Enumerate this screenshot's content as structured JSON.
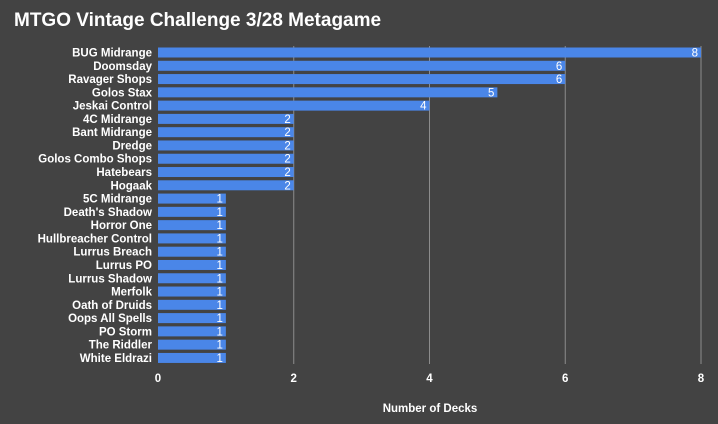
{
  "chart_data": {
    "type": "bar",
    "orientation": "horizontal",
    "title": "MTGO Vintage Challenge 3/28 Metagame",
    "xlabel": "Number of Decks",
    "ylabel": "",
    "categories": [
      "BUG Midrange",
      "Doomsday",
      "Ravager Shops",
      "Golos Stax",
      "Jeskai Control",
      "4C Midrange",
      "Bant Midrange",
      "Dredge",
      "Golos Combo Shops",
      "Hatebears",
      "Hogaak",
      "5C Midrange",
      "Death's Shadow",
      "Horror One",
      "Hullbreacher Control",
      "Lurrus Breach",
      "Lurrus PO",
      "Lurrus Shadow",
      "Merfolk",
      "Oath of Druids",
      "Oops All Spells",
      "PO Storm",
      "The Riddler",
      "White Eldrazi"
    ],
    "values": [
      8,
      6,
      6,
      5,
      4,
      2,
      2,
      2,
      2,
      2,
      2,
      1,
      1,
      1,
      1,
      1,
      1,
      1,
      1,
      1,
      1,
      1,
      1,
      1
    ],
    "xlim": [
      0,
      8
    ],
    "xticks": [
      0,
      2,
      4,
      6,
      8
    ],
    "grid": "vertical",
    "legend": "none",
    "data_labels": true,
    "colors": {
      "background": "#434343",
      "bar": "#4a86e8",
      "gridline": "#8c8c8c",
      "text": "#ffffff"
    }
  }
}
